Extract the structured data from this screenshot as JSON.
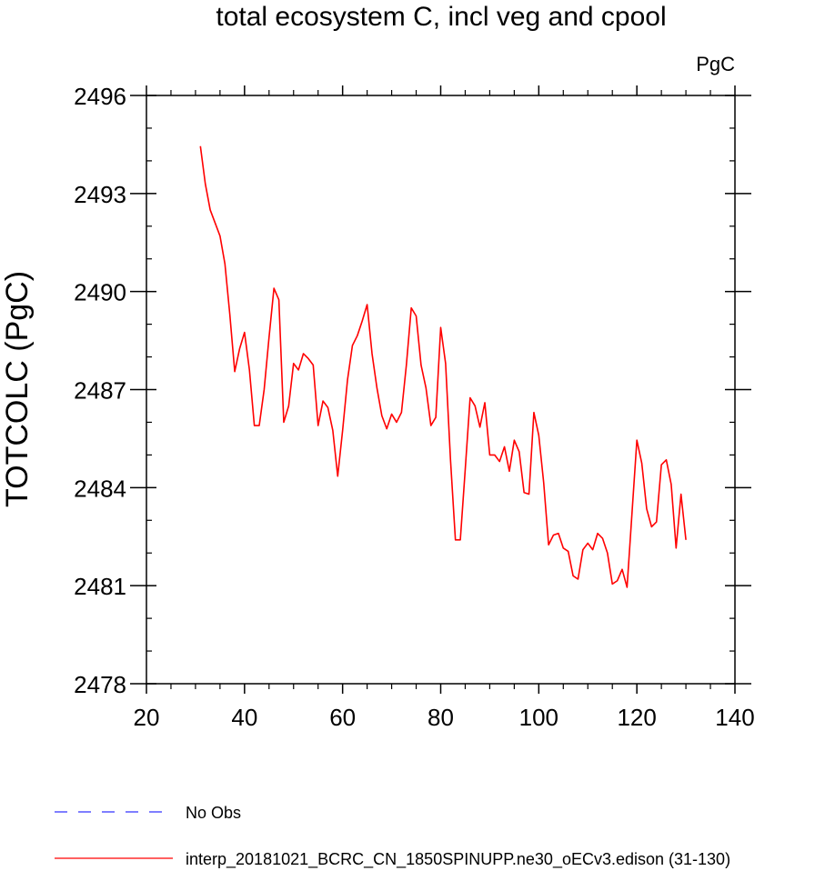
{
  "chart_data": {
    "type": "line",
    "title": "total ecosystem C, incl veg and cpool",
    "units_label": "PgC",
    "xlabel": "",
    "ylabel": "TOTCOLC  (PgC)",
    "xlim": [
      20,
      140
    ],
    "ylim": [
      2478,
      2496
    ],
    "x_ticks": [
      20,
      40,
      60,
      80,
      100,
      120,
      140
    ],
    "y_ticks": [
      2478,
      2481,
      2484,
      2487,
      2490,
      2493,
      2496
    ],
    "grid": false,
    "legend_position": "bottom-left",
    "series": [
      {
        "name": "No Obs",
        "color": "#3333ff",
        "dash": "dashed",
        "x": [],
        "y": []
      },
      {
        "name": "interp_20181021_BCRC_CN_1850SPINUPP.ne30_oECv3.edison (31-130)",
        "color": "#ff0000",
        "dash": "solid",
        "x": [
          31,
          32,
          33,
          34,
          35,
          36,
          37,
          38,
          39,
          40,
          41,
          42,
          43,
          44,
          45,
          46,
          47,
          48,
          49,
          50,
          51,
          52,
          53,
          54,
          55,
          56,
          57,
          58,
          59,
          60,
          61,
          62,
          63,
          64,
          65,
          66,
          67,
          68,
          69,
          70,
          71,
          72,
          73,
          74,
          75,
          76,
          77,
          78,
          79,
          80,
          81,
          82,
          83,
          84,
          85,
          86,
          87,
          88,
          89,
          90,
          91,
          92,
          93,
          94,
          95,
          96,
          97,
          98,
          99,
          100,
          101,
          102,
          103,
          104,
          105,
          106,
          107,
          108,
          109,
          110,
          111,
          112,
          113,
          114,
          115,
          116,
          117,
          118,
          119,
          120,
          121,
          122,
          123,
          124,
          125,
          126,
          127,
          128,
          129,
          130
        ],
        "y": [
          2494.45,
          2493.3,
          2492.5,
          2492.1,
          2491.7,
          2490.85,
          2489.3,
          2487.55,
          2488.25,
          2488.75,
          2487.6,
          2485.9,
          2485.9,
          2487.0,
          2488.6,
          2490.1,
          2489.75,
          2486.0,
          2486.5,
          2487.8,
          2487.6,
          2488.1,
          2487.95,
          2487.75,
          2485.9,
          2486.65,
          2486.45,
          2485.75,
          2484.35,
          2485.75,
          2487.3,
          2488.35,
          2488.65,
          2489.1,
          2489.6,
          2488.1,
          2487.05,
          2486.2,
          2485.8,
          2486.25,
          2486.0,
          2486.3,
          2487.75,
          2489.5,
          2489.25,
          2487.75,
          2487.05,
          2485.9,
          2486.15,
          2488.9,
          2487.8,
          2484.85,
          2482.4,
          2482.4,
          2484.55,
          2486.75,
          2486.5,
          2485.85,
          2486.6,
          2485.0,
          2485.0,
          2484.8,
          2485.25,
          2484.5,
          2485.45,
          2485.1,
          2483.85,
          2483.8,
          2486.3,
          2485.6,
          2484.15,
          2482.25,
          2482.55,
          2482.6,
          2482.15,
          2482.05,
          2481.3,
          2481.2,
          2482.1,
          2482.3,
          2482.1,
          2482.6,
          2482.45,
          2482.0,
          2481.05,
          2481.15,
          2481.5,
          2480.95,
          2483.2,
          2485.45,
          2484.75,
          2483.35,
          2482.8,
          2482.95,
          2484.7,
          2484.85,
          2484.1,
          2482.15,
          2483.8,
          2482.4
        ]
      }
    ]
  }
}
